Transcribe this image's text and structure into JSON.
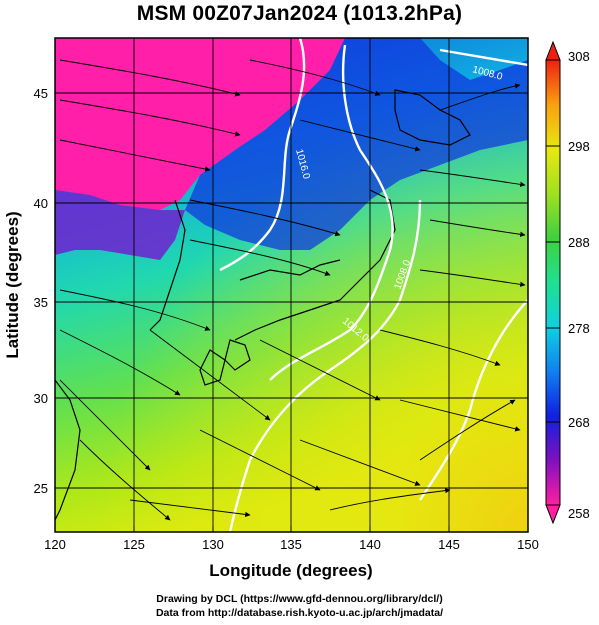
{
  "title": "MSM 00Z07Jan2024 (1013.2hPa)",
  "map": {
    "xlabel": "Longitude (degrees)",
    "ylabel": "Latitude  (degrees)",
    "x_ticks": [
      "120",
      "125",
      "130",
      "135",
      "140",
      "145",
      "150"
    ],
    "y_ticks": [
      "25",
      "30",
      "35",
      "40",
      "45"
    ],
    "lon_range": [
      120,
      150
    ],
    "lat_range": [
      22.4,
      47.6
    ],
    "contour_labels": [
      "1008.0",
      "1016.0",
      "1012.0",
      "1008.0"
    ]
  },
  "colorbar": {
    "tick_labels": [
      "308",
      "298",
      "288",
      "278",
      "268",
      "258"
    ],
    "range": [
      258,
      308
    ]
  },
  "credits": {
    "line1": "Drawing by DCL (https://www.gfd-dennou.org/library/dcl/)",
    "line2": "Data from http://database.rish.kyoto-u.ac.jp/arch/jmadata/"
  }
}
